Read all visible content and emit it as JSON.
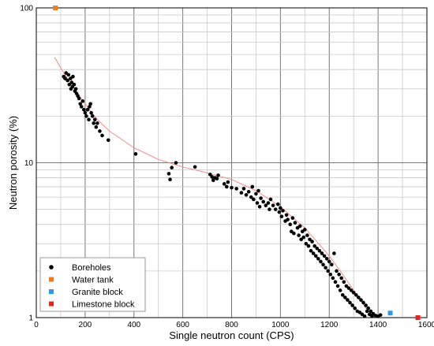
{
  "chart_data": {
    "type": "scatter",
    "title": "",
    "xlabel": "Single neutron count (CPS)",
    "ylabel": "Neutron porosity (%)",
    "xlim": [
      0,
      1600
    ],
    "ylim": [
      1,
      100
    ],
    "y_scale": "log",
    "x_ticks": [
      0,
      200,
      400,
      600,
      800,
      1000,
      1200,
      1400,
      1600
    ],
    "y_ticks": [
      1,
      10,
      100
    ],
    "y_tick_labels": [
      "1",
      "10",
      "100"
    ],
    "grid": true,
    "legend_position": "bottom-left",
    "legend": [
      {
        "name": "Boreholes",
        "marker": "circle",
        "color": "#000000"
      },
      {
        "name": "Water tank",
        "marker": "square",
        "color": "#f07a1e"
      },
      {
        "name": "Granite block",
        "marker": "square",
        "color": "#2f9be8"
      },
      {
        "name": "Limestone block",
        "marker": "square",
        "color": "#e8231f"
      }
    ],
    "series": [
      {
        "name": "Boreholes",
        "marker": "circle",
        "color": "#000000",
        "points": [
          [
            112,
            36
          ],
          [
            118,
            35
          ],
          [
            122,
            38
          ],
          [
            128,
            34
          ],
          [
            132,
            37
          ],
          [
            135,
            32
          ],
          [
            140,
            35
          ],
          [
            142,
            30
          ],
          [
            145,
            33
          ],
          [
            148,
            31
          ],
          [
            150,
            36
          ],
          [
            155,
            32
          ],
          [
            158,
            29
          ],
          [
            162,
            30
          ],
          [
            165,
            28
          ],
          [
            170,
            27
          ],
          [
            175,
            26
          ],
          [
            180,
            24
          ],
          [
            185,
            23
          ],
          [
            190,
            25
          ],
          [
            195,
            22
          ],
          [
            200,
            21
          ],
          [
            205,
            20
          ],
          [
            210,
            22
          ],
          [
            215,
            19
          ],
          [
            218,
            23
          ],
          [
            222,
            24
          ],
          [
            225,
            21
          ],
          [
            230,
            20
          ],
          [
            235,
            18
          ],
          [
            240,
            19
          ],
          [
            245,
            17
          ],
          [
            250,
            18
          ],
          [
            260,
            16
          ],
          [
            270,
            15
          ],
          [
            295,
            14
          ],
          [
            407,
            11.4
          ],
          [
            543,
            8.5
          ],
          [
            548,
            7.8
          ],
          [
            555,
            9.3
          ],
          [
            572,
            10
          ],
          [
            650,
            9.4
          ],
          [
            712,
            8.4
          ],
          [
            720,
            8.1
          ],
          [
            725,
            7.7
          ],
          [
            732,
            8.0
          ],
          [
            740,
            7.9
          ],
          [
            745,
            8.3
          ],
          [
            770,
            7.3
          ],
          [
            780,
            7.0
          ],
          [
            785,
            7.5
          ],
          [
            800,
            6.9
          ],
          [
            820,
            6.8
          ],
          [
            840,
            6.4
          ],
          [
            850,
            6.8
          ],
          [
            860,
            6.2
          ],
          [
            870,
            6.5
          ],
          [
            880,
            6.0
          ],
          [
            885,
            7.0
          ],
          [
            890,
            5.8
          ],
          [
            900,
            6.3
          ],
          [
            905,
            5.5
          ],
          [
            910,
            6.6
          ],
          [
            915,
            5.2
          ],
          [
            920,
            5.9
          ],
          [
            930,
            5.6
          ],
          [
            940,
            5.3
          ],
          [
            950,
            5.5
          ],
          [
            955,
            5.0
          ],
          [
            960,
            5.8
          ],
          [
            970,
            5.3
          ],
          [
            980,
            5.0
          ],
          [
            990,
            5.4
          ],
          [
            995,
            4.8
          ],
          [
            1000,
            5.1
          ],
          [
            1005,
            4.5
          ],
          [
            1010,
            4.9
          ],
          [
            1020,
            4.2
          ],
          [
            1025,
            4.6
          ],
          [
            1030,
            4.3
          ],
          [
            1040,
            4.0
          ],
          [
            1045,
            3.6
          ],
          [
            1050,
            4.4
          ],
          [
            1055,
            3.5
          ],
          [
            1060,
            4.1
          ],
          [
            1070,
            3.8
          ],
          [
            1075,
            3.4
          ],
          [
            1080,
            3.9
          ],
          [
            1085,
            3.2
          ],
          [
            1090,
            3.6
          ],
          [
            1095,
            3.3
          ],
          [
            1100,
            3.7
          ],
          [
            1105,
            3.0
          ],
          [
            1110,
            3.4
          ],
          [
            1115,
            2.9
          ],
          [
            1120,
            3.2
          ],
          [
            1125,
            2.7
          ],
          [
            1130,
            3.1
          ],
          [
            1135,
            2.6
          ],
          [
            1140,
            2.9
          ],
          [
            1145,
            2.5
          ],
          [
            1150,
            2.8
          ],
          [
            1155,
            2.4
          ],
          [
            1160,
            2.7
          ],
          [
            1165,
            2.3
          ],
          [
            1170,
            2.6
          ],
          [
            1175,
            2.2
          ],
          [
            1180,
            2.5
          ],
          [
            1185,
            2.1
          ],
          [
            1190,
            2.4
          ],
          [
            1195,
            2.0
          ],
          [
            1200,
            2.3
          ],
          [
            1205,
            1.9
          ],
          [
            1210,
            2.2
          ],
          [
            1215,
            1.8
          ],
          [
            1220,
            2.6
          ],
          [
            1225,
            1.7
          ],
          [
            1230,
            2.0
          ],
          [
            1235,
            1.6
          ],
          [
            1240,
            1.9
          ],
          [
            1245,
            1.5
          ],
          [
            1250,
            1.8
          ],
          [
            1255,
            1.4
          ],
          [
            1260,
            1.7
          ],
          [
            1265,
            1.35
          ],
          [
            1270,
            1.6
          ],
          [
            1275,
            1.3
          ],
          [
            1280,
            1.55
          ],
          [
            1285,
            1.25
          ],
          [
            1290,
            1.5
          ],
          [
            1295,
            1.2
          ],
          [
            1300,
            1.45
          ],
          [
            1305,
            1.15
          ],
          [
            1310,
            1.4
          ],
          [
            1315,
            1.1
          ],
          [
            1320,
            1.35
          ],
          [
            1325,
            1.08
          ],
          [
            1330,
            1.3
          ],
          [
            1335,
            1.05
          ],
          [
            1340,
            1.25
          ],
          [
            1345,
            1.02
          ],
          [
            1350,
            1.2
          ],
          [
            1355,
            1.1
          ],
          [
            1360,
            1.15
          ],
          [
            1365,
            1.05
          ],
          [
            1370,
            1.1
          ],
          [
            1375,
            1.02
          ],
          [
            1380,
            1.06
          ],
          [
            1390,
            1.03
          ],
          [
            1400,
            1.02
          ],
          [
            1410,
            1.04
          ]
        ]
      },
      {
        "name": "Water tank",
        "marker": "square",
        "color": "#f07a1e",
        "points": [
          [
            78,
            100
          ]
        ]
      },
      {
        "name": "Granite block",
        "marker": "square",
        "color": "#2f9be8",
        "points": [
          [
            1450,
            1.07
          ]
        ]
      },
      {
        "name": "Limestone block",
        "marker": "square",
        "color": "#e8231f",
        "points": [
          [
            1563,
            1.0
          ]
        ]
      }
    ],
    "fit_curve": {
      "color": "#f08a8a",
      "points": [
        [
          75,
          48
        ],
        [
          100,
          41
        ],
        [
          150,
          31
        ],
        [
          200,
          24
        ],
        [
          250,
          19
        ],
        [
          300,
          16
        ],
        [
          400,
          12.5
        ],
        [
          500,
          10.5
        ],
        [
          600,
          9.4
        ],
        [
          700,
          8.6
        ],
        [
          800,
          7.8
        ],
        [
          900,
          6.6
        ],
        [
          1000,
          5.2
        ],
        [
          1100,
          3.8
        ],
        [
          1200,
          2.5
        ],
        [
          1250,
          1.95
        ],
        [
          1300,
          1.5
        ],
        [
          1350,
          1.15
        ],
        [
          1390,
          1.0
        ]
      ]
    }
  }
}
